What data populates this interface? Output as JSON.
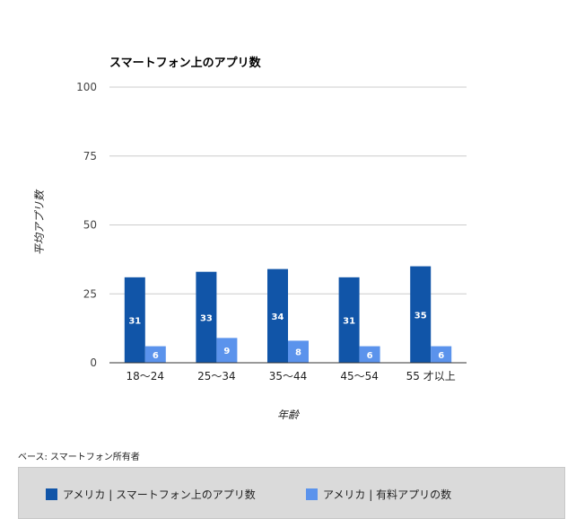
{
  "chart_data": {
    "type": "bar",
    "title": "スマートフォン上のアプリ数",
    "ylabel": "平均アプリ数",
    "xlabel": "年齢",
    "ylim": [
      0,
      100
    ],
    "yticks": [
      "0",
      "25",
      "50",
      "75",
      "100"
    ],
    "categories": [
      "18〜24",
      "25〜34",
      "35〜44",
      "45〜54",
      "55 才以上"
    ],
    "series": [
      {
        "name": "アメリカ | スマートフォン上のアプリ数",
        "color": "#1155a8",
        "values": [
          31,
          33,
          34,
          31,
          35
        ]
      },
      {
        "name": "アメリカ | 有料アプリの数",
        "color": "#5b93ec",
        "values": [
          6,
          9,
          8,
          6,
          6
        ]
      }
    ],
    "grid": true,
    "legend_position": "bottom"
  },
  "note": "ベース: スマートフォン所有者"
}
